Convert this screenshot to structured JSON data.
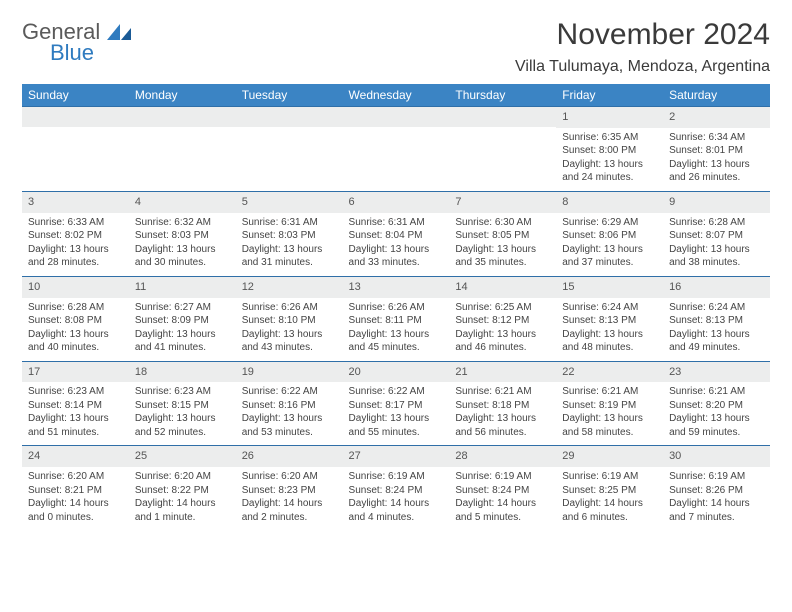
{
  "logo": {
    "general": "General",
    "blue": "Blue"
  },
  "title": "November 2024",
  "location": "Villa Tulumaya, Mendoza, Argentina",
  "colors": {
    "header_bg": "#3b84c4",
    "header_text": "#ffffff",
    "daynum_bg": "#eceded",
    "row_border": "#2f6fa8",
    "logo_blue": "#2f7bbf",
    "logo_gray": "#5a5a5a",
    "body_text": "#444444"
  },
  "weekdays": [
    "Sunday",
    "Monday",
    "Tuesday",
    "Wednesday",
    "Thursday",
    "Friday",
    "Saturday"
  ],
  "weeks": [
    [
      null,
      null,
      null,
      null,
      null,
      {
        "n": "1",
        "sr": "Sunrise: 6:35 AM",
        "ss": "Sunset: 8:00 PM",
        "d1": "Daylight: 13 hours",
        "d2": "and 24 minutes."
      },
      {
        "n": "2",
        "sr": "Sunrise: 6:34 AM",
        "ss": "Sunset: 8:01 PM",
        "d1": "Daylight: 13 hours",
        "d2": "and 26 minutes."
      }
    ],
    [
      {
        "n": "3",
        "sr": "Sunrise: 6:33 AM",
        "ss": "Sunset: 8:02 PM",
        "d1": "Daylight: 13 hours",
        "d2": "and 28 minutes."
      },
      {
        "n": "4",
        "sr": "Sunrise: 6:32 AM",
        "ss": "Sunset: 8:03 PM",
        "d1": "Daylight: 13 hours",
        "d2": "and 30 minutes."
      },
      {
        "n": "5",
        "sr": "Sunrise: 6:31 AM",
        "ss": "Sunset: 8:03 PM",
        "d1": "Daylight: 13 hours",
        "d2": "and 31 minutes."
      },
      {
        "n": "6",
        "sr": "Sunrise: 6:31 AM",
        "ss": "Sunset: 8:04 PM",
        "d1": "Daylight: 13 hours",
        "d2": "and 33 minutes."
      },
      {
        "n": "7",
        "sr": "Sunrise: 6:30 AM",
        "ss": "Sunset: 8:05 PM",
        "d1": "Daylight: 13 hours",
        "d2": "and 35 minutes."
      },
      {
        "n": "8",
        "sr": "Sunrise: 6:29 AM",
        "ss": "Sunset: 8:06 PM",
        "d1": "Daylight: 13 hours",
        "d2": "and 37 minutes."
      },
      {
        "n": "9",
        "sr": "Sunrise: 6:28 AM",
        "ss": "Sunset: 8:07 PM",
        "d1": "Daylight: 13 hours",
        "d2": "and 38 minutes."
      }
    ],
    [
      {
        "n": "10",
        "sr": "Sunrise: 6:28 AM",
        "ss": "Sunset: 8:08 PM",
        "d1": "Daylight: 13 hours",
        "d2": "and 40 minutes."
      },
      {
        "n": "11",
        "sr": "Sunrise: 6:27 AM",
        "ss": "Sunset: 8:09 PM",
        "d1": "Daylight: 13 hours",
        "d2": "and 41 minutes."
      },
      {
        "n": "12",
        "sr": "Sunrise: 6:26 AM",
        "ss": "Sunset: 8:10 PM",
        "d1": "Daylight: 13 hours",
        "d2": "and 43 minutes."
      },
      {
        "n": "13",
        "sr": "Sunrise: 6:26 AM",
        "ss": "Sunset: 8:11 PM",
        "d1": "Daylight: 13 hours",
        "d2": "and 45 minutes."
      },
      {
        "n": "14",
        "sr": "Sunrise: 6:25 AM",
        "ss": "Sunset: 8:12 PM",
        "d1": "Daylight: 13 hours",
        "d2": "and 46 minutes."
      },
      {
        "n": "15",
        "sr": "Sunrise: 6:24 AM",
        "ss": "Sunset: 8:13 PM",
        "d1": "Daylight: 13 hours",
        "d2": "and 48 minutes."
      },
      {
        "n": "16",
        "sr": "Sunrise: 6:24 AM",
        "ss": "Sunset: 8:13 PM",
        "d1": "Daylight: 13 hours",
        "d2": "and 49 minutes."
      }
    ],
    [
      {
        "n": "17",
        "sr": "Sunrise: 6:23 AM",
        "ss": "Sunset: 8:14 PM",
        "d1": "Daylight: 13 hours",
        "d2": "and 51 minutes."
      },
      {
        "n": "18",
        "sr": "Sunrise: 6:23 AM",
        "ss": "Sunset: 8:15 PM",
        "d1": "Daylight: 13 hours",
        "d2": "and 52 minutes."
      },
      {
        "n": "19",
        "sr": "Sunrise: 6:22 AM",
        "ss": "Sunset: 8:16 PM",
        "d1": "Daylight: 13 hours",
        "d2": "and 53 minutes."
      },
      {
        "n": "20",
        "sr": "Sunrise: 6:22 AM",
        "ss": "Sunset: 8:17 PM",
        "d1": "Daylight: 13 hours",
        "d2": "and 55 minutes."
      },
      {
        "n": "21",
        "sr": "Sunrise: 6:21 AM",
        "ss": "Sunset: 8:18 PM",
        "d1": "Daylight: 13 hours",
        "d2": "and 56 minutes."
      },
      {
        "n": "22",
        "sr": "Sunrise: 6:21 AM",
        "ss": "Sunset: 8:19 PM",
        "d1": "Daylight: 13 hours",
        "d2": "and 58 minutes."
      },
      {
        "n": "23",
        "sr": "Sunrise: 6:21 AM",
        "ss": "Sunset: 8:20 PM",
        "d1": "Daylight: 13 hours",
        "d2": "and 59 minutes."
      }
    ],
    [
      {
        "n": "24",
        "sr": "Sunrise: 6:20 AM",
        "ss": "Sunset: 8:21 PM",
        "d1": "Daylight: 14 hours",
        "d2": "and 0 minutes."
      },
      {
        "n": "25",
        "sr": "Sunrise: 6:20 AM",
        "ss": "Sunset: 8:22 PM",
        "d1": "Daylight: 14 hours",
        "d2": "and 1 minute."
      },
      {
        "n": "26",
        "sr": "Sunrise: 6:20 AM",
        "ss": "Sunset: 8:23 PM",
        "d1": "Daylight: 14 hours",
        "d2": "and 2 minutes."
      },
      {
        "n": "27",
        "sr": "Sunrise: 6:19 AM",
        "ss": "Sunset: 8:24 PM",
        "d1": "Daylight: 14 hours",
        "d2": "and 4 minutes."
      },
      {
        "n": "28",
        "sr": "Sunrise: 6:19 AM",
        "ss": "Sunset: 8:24 PM",
        "d1": "Daylight: 14 hours",
        "d2": "and 5 minutes."
      },
      {
        "n": "29",
        "sr": "Sunrise: 6:19 AM",
        "ss": "Sunset: 8:25 PM",
        "d1": "Daylight: 14 hours",
        "d2": "and 6 minutes."
      },
      {
        "n": "30",
        "sr": "Sunrise: 6:19 AM",
        "ss": "Sunset: 8:26 PM",
        "d1": "Daylight: 14 hours",
        "d2": "and 7 minutes."
      }
    ]
  ]
}
